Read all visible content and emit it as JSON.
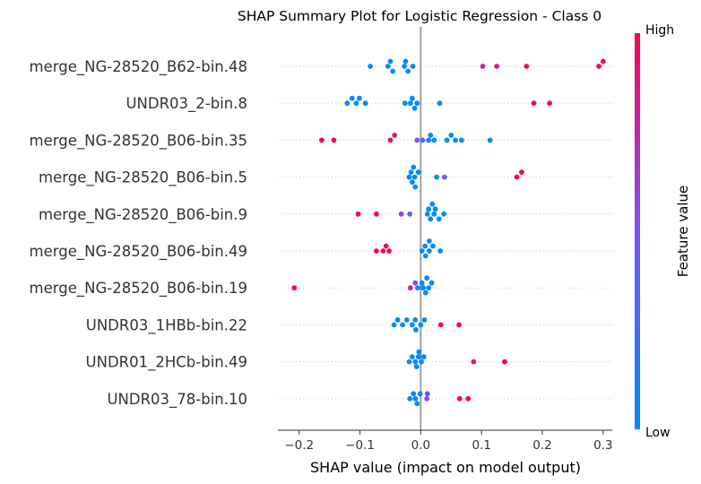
{
  "chart_data": {
    "type": "scatter",
    "title": "SHAP Summary Plot for Logistic Regression - Class 0",
    "xlabel": "SHAP value (impact on model output)",
    "xlim": [
      -0.235,
      0.315
    ],
    "xticks": [
      -0.2,
      -0.1,
      0.0,
      0.1,
      0.2,
      0.3
    ],
    "xtick_labels": [
      "−0.2",
      "−0.1",
      "0.0",
      "0.1",
      "0.2",
      "0.3"
    ],
    "colorbar": {
      "label": "Feature value",
      "high": "High",
      "low": "Low",
      "low_color": "#008bfb",
      "mid_color": "#7c52ff",
      "high_color": "#ff0051"
    },
    "zero_line_color": "#999999",
    "features": [
      {
        "name": "merge_NG-28520_B62-bin.48",
        "points": [
          {
            "x": -0.083,
            "v": 0.0
          },
          {
            "x": -0.054,
            "v": 0.0
          },
          {
            "x": -0.05,
            "v": 0.02
          },
          {
            "x": -0.046,
            "v": 0.0
          },
          {
            "x": -0.027,
            "v": 0.05
          },
          {
            "x": -0.025,
            "v": 0.0
          },
          {
            "x": -0.021,
            "v": 0.0
          },
          {
            "x": -0.013,
            "v": 0.05
          },
          {
            "x": 0.102,
            "v": 0.85
          },
          {
            "x": 0.125,
            "v": 0.85
          },
          {
            "x": 0.174,
            "v": 0.95
          },
          {
            "x": 0.293,
            "v": 1.0
          },
          {
            "x": 0.3,
            "v": 1.0
          }
        ]
      },
      {
        "name": "UNDR03_2-bin.8",
        "points": [
          {
            "x": -0.121,
            "v": 0.0
          },
          {
            "x": -0.113,
            "v": 0.0
          },
          {
            "x": -0.106,
            "v": 0.0
          },
          {
            "x": -0.101,
            "v": 0.0
          },
          {
            "x": -0.091,
            "v": 0.0
          },
          {
            "x": -0.026,
            "v": 0.0
          },
          {
            "x": -0.017,
            "v": 0.0
          },
          {
            "x": -0.014,
            "v": 0.0
          },
          {
            "x": -0.01,
            "v": 0.0
          },
          {
            "x": -0.006,
            "v": 0.0
          },
          {
            "x": 0.031,
            "v": 0.0
          },
          {
            "x": 0.186,
            "v": 1.0
          },
          {
            "x": 0.212,
            "v": 1.0
          }
        ]
      },
      {
        "name": "merge_NG-28520_B06-bin.35",
        "points": [
          {
            "x": -0.163,
            "v": 1.0
          },
          {
            "x": -0.143,
            "v": 1.0
          },
          {
            "x": -0.05,
            "v": 0.9
          },
          {
            "x": -0.043,
            "v": 0.85
          },
          {
            "x": -0.006,
            "v": 0.5
          },
          {
            "x": 0.003,
            "v": 0.3
          },
          {
            "x": 0.013,
            "v": 0.1
          },
          {
            "x": 0.016,
            "v": 0.0
          },
          {
            "x": 0.022,
            "v": 0.0
          },
          {
            "x": 0.043,
            "v": 0.0
          },
          {
            "x": 0.05,
            "v": 0.0
          },
          {
            "x": 0.057,
            "v": 0.0
          },
          {
            "x": 0.067,
            "v": 0.0
          },
          {
            "x": 0.114,
            "v": 0.0
          }
        ]
      },
      {
        "name": "merge_NG-28520_B06-bin.5",
        "points": [
          {
            "x": -0.019,
            "v": 0.0
          },
          {
            "x": -0.012,
            "v": 0.0
          },
          {
            "x": -0.009,
            "v": 0.0
          },
          {
            "x": -0.016,
            "v": 0.0
          },
          {
            "x": -0.014,
            "v": 0.0
          },
          {
            "x": -0.004,
            "v": 0.0
          },
          {
            "x": -0.01,
            "v": 0.0
          },
          {
            "x": 0.026,
            "v": 0.0
          },
          {
            "x": 0.039,
            "v": 0.45
          },
          {
            "x": 0.158,
            "v": 1.0
          },
          {
            "x": 0.166,
            "v": 1.0
          }
        ]
      },
      {
        "name": "merge_NG-28520_B06-bin.9",
        "points": [
          {
            "x": -0.103,
            "v": 1.0
          },
          {
            "x": -0.073,
            "v": 0.95
          },
          {
            "x": -0.032,
            "v": 0.6
          },
          {
            "x": -0.018,
            "v": 0.4
          },
          {
            "x": 0.011,
            "v": 0.0
          },
          {
            "x": 0.016,
            "v": 0.0
          },
          {
            "x": 0.022,
            "v": 0.0
          },
          {
            "x": 0.013,
            "v": 0.0
          },
          {
            "x": 0.019,
            "v": 0.0
          },
          {
            "x": 0.024,
            "v": 0.0
          },
          {
            "x": 0.03,
            "v": 0.0
          },
          {
            "x": 0.038,
            "v": 0.0
          }
        ]
      },
      {
        "name": "merge_NG-28520_B06-bin.49",
        "points": [
          {
            "x": -0.073,
            "v": 1.0
          },
          {
            "x": -0.062,
            "v": 0.9
          },
          {
            "x": -0.057,
            "v": 0.95
          },
          {
            "x": -0.052,
            "v": 1.0
          },
          {
            "x": 0.007,
            "v": 0.0
          },
          {
            "x": 0.014,
            "v": 0.0
          },
          {
            "x": 0.002,
            "v": 0.0
          },
          {
            "x": 0.008,
            "v": 0.0
          },
          {
            "x": 0.014,
            "v": 0.0
          },
          {
            "x": 0.02,
            "v": 0.0
          },
          {
            "x": 0.032,
            "v": 0.0
          }
        ]
      },
      {
        "name": "merge_NG-28520_B06-bin.19",
        "points": [
          {
            "x": -0.208,
            "v": 1.0
          },
          {
            "x": -0.017,
            "v": 0.75
          },
          {
            "x": -0.009,
            "v": 0.45
          },
          {
            "x": 0.01,
            "v": 0.0
          },
          {
            "x": -0.005,
            "v": 0.0
          },
          {
            "x": 0.002,
            "v": 0.0
          },
          {
            "x": 0.008,
            "v": 0.0
          },
          {
            "x": 0.013,
            "v": 0.0
          },
          {
            "x": 0.018,
            "v": 0.0
          },
          {
            "x": 0.004,
            "v": 0.0
          }
        ]
      },
      {
        "name": "UNDR03_1HBb-bin.22",
        "points": [
          {
            "x": -0.009,
            "v": 0.0
          },
          {
            "x": -0.044,
            "v": 0.0
          },
          {
            "x": -0.038,
            "v": 0.0
          },
          {
            "x": -0.03,
            "v": 0.0
          },
          {
            "x": -0.023,
            "v": 0.0
          },
          {
            "x": -0.014,
            "v": 0.0
          },
          {
            "x": -0.008,
            "v": 0.0
          },
          {
            "x": 0.0,
            "v": 0.0
          },
          {
            "x": 0.006,
            "v": 0.0
          },
          {
            "x": 0.033,
            "v": 0.95
          },
          {
            "x": 0.063,
            "v": 1.0
          }
        ]
      },
      {
        "name": "UNDR01_2HCb-bin.49",
        "points": [
          {
            "x": -0.007,
            "v": 0.0
          },
          {
            "x": -0.003,
            "v": 0.0
          },
          {
            "x": -0.019,
            "v": 0.0
          },
          {
            "x": -0.014,
            "v": 0.0
          },
          {
            "x": -0.009,
            "v": 0.0
          },
          {
            "x": -0.004,
            "v": 0.0
          },
          {
            "x": 0.001,
            "v": 0.0
          },
          {
            "x": 0.005,
            "v": 0.0
          },
          {
            "x": 0.087,
            "v": 0.9
          },
          {
            "x": 0.138,
            "v": 1.0
          }
        ]
      },
      {
        "name": "UNDR03_78-bin.10",
        "points": [
          {
            "x": -0.009,
            "v": 0.0
          },
          {
            "x": 0.01,
            "v": 0.5
          },
          {
            "x": -0.018,
            "v": 0.0
          },
          {
            "x": -0.012,
            "v": 0.0
          },
          {
            "x": -0.006,
            "v": 0.0
          },
          {
            "x": -0.001,
            "v": 0.0
          },
          {
            "x": 0.011,
            "v": 0.55
          },
          {
            "x": 0.064,
            "v": 1.0
          },
          {
            "x": 0.078,
            "v": 1.0
          }
        ]
      }
    ]
  }
}
